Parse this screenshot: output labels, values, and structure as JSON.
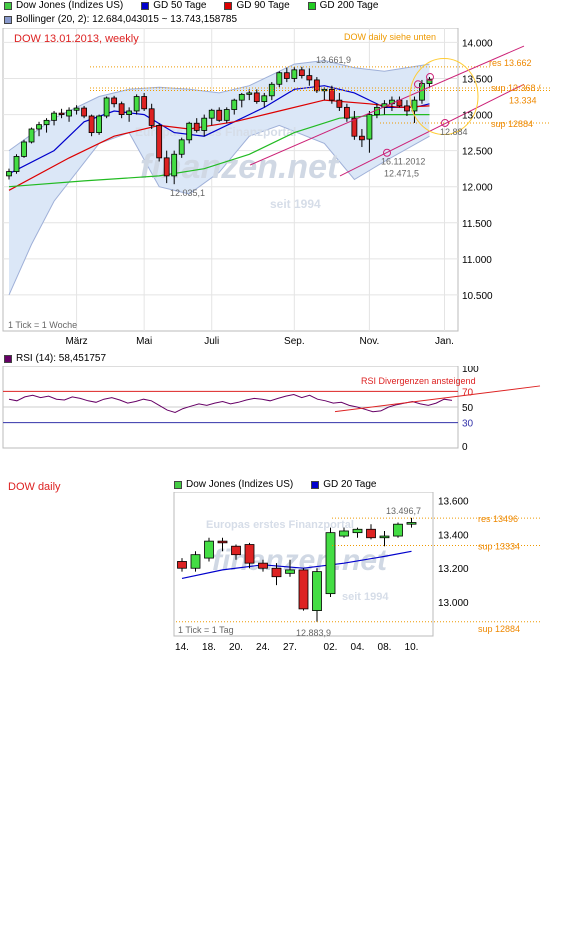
{
  "weekly": {
    "legend": [
      {
        "label": "Dow Jones (Indizes US)",
        "color": "#44cc44"
      },
      {
        "label": "GD 50 Tage",
        "color": "#0000cc"
      },
      {
        "label": "GD 90 Tage",
        "color": "#dd0000"
      },
      {
        "label": "GD 200 Tage",
        "color": "#22cc22"
      }
    ],
    "bollinger_label": "Bollinger (20, 2): 12.684,043015 ~ 13.743,158785",
    "bollinger_color": "#8899cc",
    "title": "DOW 13.01.2013,   weekly",
    "note_daily": "DOW daily  siehe unten",
    "tick_label": "1 Tick = 1 Woche",
    "watermark": [
      "Europas erstes Finanzportal",
      "finanzen.net",
      "seit 1994"
    ],
    "annotations": {
      "res": "res  13.662",
      "sup1": "sup  13.368 /",
      "sup1b": "13.334",
      "sup2": "sup  12884",
      "low_date": "16.11.2012",
      "low_value": "12.471,5",
      "high_label": "13.661,9",
      "may_low": "12.035,1",
      "last_close": "12.884"
    }
  },
  "rsi": {
    "label": "RSI (14): 58,451757",
    "color": "#660066",
    "note": "RSI Divergenzen ansteigend",
    "levels": [
      "100",
      "70",
      "50",
      "30",
      "0"
    ]
  },
  "daily": {
    "title": "DOW daily",
    "legend": [
      {
        "label": "Dow Jones (Indizes US)",
        "color": "#44cc44"
      },
      {
        "label": "GD 20 Tage",
        "color": "#0000cc"
      }
    ],
    "tick_label": "1 Tick = 1 Tag",
    "watermark": [
      "Europas erstes Finanzportal",
      "finanzen.net",
      "seit 1994"
    ],
    "annotations": {
      "res": "res  13496",
      "sup1": "sup  13334",
      "sup2": "sup  12884",
      "high_label": "13.496,7",
      "low_label": "12.883,9"
    }
  },
  "chart_data": [
    {
      "type": "candlestick",
      "title": "DOW 13.01.2013,   weekly",
      "ylim": [
        10000,
        14200
      ],
      "y_ticks": [
        "14.000",
        "13.500",
        "13.000",
        "12.500",
        "12.000",
        "11.500",
        "11.000",
        "10.500"
      ],
      "y_tick_values": [
        14000,
        13500,
        13000,
        12500,
        12000,
        11500,
        11000,
        10500
      ],
      "x_tick_labels": [
        "März",
        "Mai",
        "Juli",
        "Sep.",
        "Nov.",
        "Jan."
      ],
      "x_tick_weeks": [
        9,
        18,
        27,
        38,
        48,
        58
      ],
      "weeks": 60,
      "candles": [
        [
          12150,
          12250,
          12100,
          12210
        ],
        [
          12210,
          12450,
          12180,
          12420
        ],
        [
          12420,
          12650,
          12400,
          12620
        ],
        [
          12620,
          12820,
          12600,
          12800
        ],
        [
          12800,
          12900,
          12700,
          12860
        ],
        [
          12860,
          12950,
          12750,
          12920
        ],
        [
          12920,
          13050,
          12850,
          13020
        ],
        [
          13020,
          13080,
          12950,
          13000
        ],
        [
          12980,
          13100,
          12900,
          13060
        ],
        [
          13060,
          13130,
          13000,
          13090
        ],
        [
          13090,
          13120,
          12950,
          12980
        ],
        [
          12980,
          13000,
          12700,
          12750
        ],
        [
          12750,
          13000,
          12720,
          12980
        ],
        [
          12980,
          13250,
          12950,
          13230
        ],
        [
          13230,
          13260,
          13100,
          13150
        ],
        [
          13150,
          13180,
          12950,
          13000
        ],
        [
          13000,
          13100,
          12900,
          13050
        ],
        [
          13050,
          13280,
          13000,
          13250
        ],
        [
          13250,
          13300,
          13050,
          13080
        ],
        [
          13080,
          13150,
          12800,
          12850
        ],
        [
          12850,
          12880,
          12350,
          12400
        ],
        [
          12400,
          12500,
          12050,
          12150
        ],
        [
          12150,
          12500,
          12035,
          12450
        ],
        [
          12450,
          12680,
          12400,
          12650
        ],
        [
          12650,
          12900,
          12600,
          12880
        ],
        [
          12880,
          12950,
          12750,
          12780
        ],
        [
          12780,
          13000,
          12700,
          12950
        ],
        [
          12950,
          13080,
          12850,
          13060
        ],
        [
          13060,
          13100,
          12900,
          12920
        ],
        [
          12920,
          13100,
          12880,
          13070
        ],
        [
          13070,
          13220,
          13000,
          13200
        ],
        [
          13200,
          13300,
          13100,
          13280
        ],
        [
          13280,
          13350,
          13200,
          13300
        ],
        [
          13300,
          13350,
          13150,
          13180
        ],
        [
          13180,
          13300,
          13100,
          13260
        ],
        [
          13260,
          13450,
          13200,
          13420
        ],
        [
          13420,
          13600,
          13380,
          13580
        ],
        [
          13580,
          13650,
          13450,
          13500
        ],
        [
          13500,
          13660,
          13450,
          13620
        ],
        [
          13620,
          13662,
          13500,
          13540
        ],
        [
          13540,
          13640,
          13400,
          13480
        ],
        [
          13480,
          13520,
          13300,
          13330
        ],
        [
          13330,
          13380,
          13200,
          13350
        ],
        [
          13350,
          13400,
          13150,
          13200
        ],
        [
          13200,
          13300,
          13050,
          13100
        ],
        [
          13100,
          13150,
          12900,
          12950
        ],
        [
          12950,
          13050,
          12650,
          12700
        ],
        [
          12700,
          12800,
          12550,
          12650
        ],
        [
          12660,
          13050,
          12471,
          13000
        ],
        [
          13000,
          13150,
          12950,
          13100
        ],
        [
          13100,
          13200,
          13000,
          13150
        ],
        [
          13150,
          13250,
          13050,
          13200
        ],
        [
          13200,
          13250,
          13100,
          13120
        ],
        [
          13120,
          13200,
          12980,
          13050
        ],
        [
          13050,
          13250,
          12884,
          13200
        ],
        [
          13200,
          13480,
          13150,
          13430
        ],
        [
          13430,
          13520,
          13380,
          13490
        ]
      ],
      "series": [
        {
          "name": "GD 50 Tage",
          "values": [
            [
              0,
              12180
            ],
            [
              6,
              12500
            ],
            [
              10,
              12900
            ],
            [
              14,
              13050
            ],
            [
              18,
              13000
            ],
            [
              22,
              12750
            ],
            [
              26,
              12700
            ],
            [
              30,
              12900
            ],
            [
              34,
              13100
            ],
            [
              38,
              13350
            ],
            [
              42,
              13400
            ],
            [
              46,
              13300
            ],
            [
              50,
              13100
            ],
            [
              54,
              13100
            ],
            [
              56,
              13150
            ]
          ]
        },
        {
          "name": "GD 90 Tage",
          "values": [
            [
              0,
              11950
            ],
            [
              8,
              12400
            ],
            [
              14,
              12700
            ],
            [
              20,
              12850
            ],
            [
              24,
              12800
            ],
            [
              30,
              12900
            ],
            [
              36,
              13050
            ],
            [
              42,
              13200
            ],
            [
              48,
              13150
            ],
            [
              52,
              13100
            ],
            [
              56,
              13120
            ]
          ]
        },
        {
          "name": "GD 200 Tage",
          "values": [
            [
              0,
              12000
            ],
            [
              10,
              12080
            ],
            [
              20,
              12150
            ],
            [
              26,
              12250
            ],
            [
              32,
              12450
            ],
            [
              38,
              12750
            ],
            [
              44,
              12950
            ],
            [
              50,
              13000
            ],
            [
              56,
              13000
            ]
          ]
        }
      ],
      "bollinger": {
        "upper": [
          [
            0,
            12500
          ],
          [
            6,
            12950
          ],
          [
            12,
            13250
          ],
          [
            16,
            13350
          ],
          [
            20,
            13380
          ],
          [
            24,
            13350
          ],
          [
            28,
            13300
          ],
          [
            32,
            13400
          ],
          [
            38,
            13700
          ],
          [
            42,
            13750
          ],
          [
            46,
            13650
          ],
          [
            50,
            13600
          ],
          [
            56,
            13700
          ]
        ],
        "lower": [
          [
            0,
            10500
          ],
          [
            3,
            11200
          ],
          [
            6,
            11800
          ],
          [
            12,
            12600
          ],
          [
            16,
            12750
          ],
          [
            20,
            12000
          ],
          [
            24,
            11900
          ],
          [
            28,
            12200
          ],
          [
            32,
            12700
          ],
          [
            36,
            12850
          ],
          [
            42,
            12600
          ],
          [
            46,
            12100
          ],
          [
            50,
            12350
          ],
          [
            56,
            12700
          ]
        ]
      }
    },
    {
      "type": "line",
      "title": "RSI (14): 58,451757",
      "ylim": [
        0,
        100
      ],
      "y_ticks": [
        "100",
        "70",
        "50",
        "30",
        "0"
      ],
      "levels": [
        70,
        30
      ],
      "values": [
        60,
        58,
        63,
        65,
        62,
        64,
        60,
        59,
        63,
        61,
        58,
        56,
        60,
        62,
        59,
        55,
        57,
        60,
        58,
        52,
        46,
        43,
        48,
        51,
        54,
        52,
        55,
        57,
        54,
        56,
        59,
        61,
        60,
        58,
        61,
        64,
        66,
        62,
        65,
        60,
        58,
        55,
        56,
        52,
        50,
        47,
        44,
        45,
        50,
        53,
        55,
        57,
        54,
        52,
        55,
        60,
        58.45
      ]
    },
    {
      "type": "candlestick",
      "title": "DOW daily",
      "ylim": [
        12800,
        13650
      ],
      "y_ticks": [
        "13.600",
        "13.400",
        "13.200",
        "13.000"
      ],
      "y_tick_values": [
        13600,
        13400,
        13200,
        13000
      ],
      "x_tick_labels": [
        "14.",
        "18.",
        "20.",
        "24.",
        "27.",
        "02.",
        "04.",
        "08.",
        "10."
      ],
      "x_tick_days": [
        0,
        2,
        4,
        6,
        8,
        11,
        13,
        15,
        17
      ],
      "days": 19,
      "candles": [
        [
          13240,
          13260,
          13180,
          13200
        ],
        [
          13200,
          13300,
          13180,
          13280
        ],
        [
          13260,
          13380,
          13240,
          13360
        ],
        [
          13360,
          13380,
          13300,
          13350
        ],
        [
          13330,
          13340,
          13250,
          13280
        ],
        [
          13340,
          13350,
          13200,
          13230
        ],
        [
          13230,
          13250,
          13180,
          13200
        ],
        [
          13200,
          13230,
          13100,
          13150
        ],
        [
          13170,
          13250,
          13150,
          13190
        ],
        [
          13190,
          13200,
          12950,
          12960
        ],
        [
          12950,
          13200,
          12884,
          13180
        ],
        [
          13050,
          13440,
          13030,
          13410
        ],
        [
          13390,
          13440,
          13380,
          13420
        ],
        [
          13410,
          13440,
          13380,
          13430
        ],
        [
          13430,
          13460,
          13370,
          13380
        ],
        [
          13380,
          13420,
          13330,
          13390
        ],
        [
          13390,
          13470,
          13380,
          13460
        ],
        [
          13460,
          13497,
          13440,
          13470
        ]
      ],
      "series": [
        {
          "name": "GD 20 Tage",
          "values": [
            [
              0,
              13140
            ],
            [
              3,
              13190
            ],
            [
              6,
              13220
            ],
            [
              9,
              13200
            ],
            [
              12,
              13230
            ],
            [
              15,
              13270
            ],
            [
              17,
              13300
            ]
          ]
        }
      ]
    }
  ]
}
